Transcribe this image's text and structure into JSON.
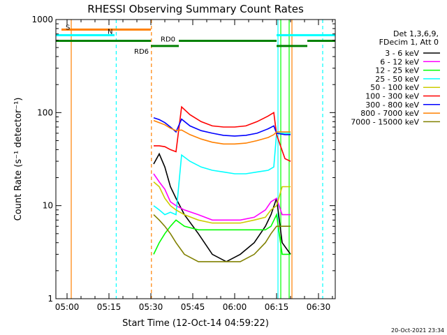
{
  "chart_data": {
    "type": "line",
    "title": "RHESSI Observing Summary Count Rates",
    "xlabel": "Start Time (12-Oct-14 04:59:22)",
    "ylabel": "Count Rate (s⁻¹ detector⁻¹)",
    "yscale": "log",
    "ylim": [
      1,
      1000
    ],
    "xlim_minutes": [
      -4,
      96
    ],
    "xticks": [
      {
        "label": "05:00",
        "t": 0
      },
      {
        "label": "05:15",
        "t": 15
      },
      {
        "label": "05:30",
        "t": 30
      },
      {
        "label": "05:45",
        "t": 45
      },
      {
        "label": "06:00",
        "t": 60
      },
      {
        "label": "06:15",
        "t": 75
      },
      {
        "label": "06:30",
        "t": 90
      }
    ],
    "yticks": [
      {
        "label": "1",
        "v": 1
      },
      {
        "label": "10",
        "v": 10
      },
      {
        "label": "100",
        "v": 100
      },
      {
        "label": "1000",
        "v": 1000
      }
    ],
    "legend_position": "right",
    "legend_header": [
      "Det 1,3,6,9,",
      "FDecim 1, Att 0"
    ],
    "timestamp": "20-Oct-2021 23:34",
    "series": [
      {
        "name": "3 - 6 keV",
        "color": "#000000",
        "points": [
          [
            31,
            28
          ],
          [
            33,
            36
          ],
          [
            35,
            26
          ],
          [
            37,
            16
          ],
          [
            39,
            12
          ],
          [
            42,
            8
          ],
          [
            47,
            5
          ],
          [
            52,
            3
          ],
          [
            57,
            2.5
          ],
          [
            62,
            3
          ],
          [
            67,
            4
          ],
          [
            71,
            6
          ],
          [
            73,
            8
          ],
          [
            75,
            12
          ],
          [
            77,
            4
          ],
          [
            80,
            3
          ]
        ]
      },
      {
        "name": "6 - 12 keV",
        "color": "#ff00ff",
        "points": [
          [
            31,
            22
          ],
          [
            33,
            18
          ],
          [
            35,
            15
          ],
          [
            37,
            11
          ],
          [
            39,
            10
          ],
          [
            42,
            9
          ],
          [
            47,
            8
          ],
          [
            52,
            7
          ],
          [
            57,
            7
          ],
          [
            62,
            7
          ],
          [
            67,
            7.5
          ],
          [
            71,
            9
          ],
          [
            73,
            11
          ],
          [
            75,
            12
          ],
          [
            77,
            8
          ],
          [
            80,
            8
          ]
        ]
      },
      {
        "name": "12 - 25 keV",
        "color": "#00ff00",
        "points": [
          [
            31,
            3
          ],
          [
            33,
            4
          ],
          [
            35,
            5
          ],
          [
            37,
            6
          ],
          [
            39,
            7
          ],
          [
            42,
            6
          ],
          [
            47,
            5.5
          ],
          [
            52,
            5.5
          ],
          [
            57,
            5.5
          ],
          [
            62,
            5.5
          ],
          [
            67,
            5.5
          ],
          [
            71,
            5.5
          ],
          [
            73,
            6
          ],
          [
            75,
            8
          ],
          [
            77,
            3
          ],
          [
            80,
            3
          ]
        ]
      },
      {
        "name": "25 - 50 keV",
        "color": "#00ffff",
        "points": [
          [
            31,
            10
          ],
          [
            33,
            9
          ],
          [
            35,
            8
          ],
          [
            37,
            8.5
          ],
          [
            39,
            8
          ],
          [
            41,
            35
          ],
          [
            44,
            30
          ],
          [
            48,
            26
          ],
          [
            52,
            24
          ],
          [
            56,
            23
          ],
          [
            60,
            22
          ],
          [
            64,
            22
          ],
          [
            68,
            23
          ],
          [
            72,
            24
          ],
          [
            74,
            26
          ],
          [
            75,
            60
          ],
          [
            78,
            60
          ],
          [
            80,
            60
          ]
        ]
      },
      {
        "name": "50 - 100 keV",
        "color": "#cccc00",
        "points": [
          [
            31,
            18
          ],
          [
            33,
            16
          ],
          [
            35,
            12
          ],
          [
            37,
            10
          ],
          [
            39,
            9
          ],
          [
            42,
            8
          ],
          [
            47,
            7
          ],
          [
            52,
            6.5
          ],
          [
            57,
            6.5
          ],
          [
            62,
            6.5
          ],
          [
            67,
            7
          ],
          [
            71,
            7.5
          ],
          [
            73,
            9
          ],
          [
            75,
            10
          ],
          [
            77,
            16
          ],
          [
            80,
            16
          ]
        ]
      },
      {
        "name": "100 - 300 keV",
        "color": "#ff0000",
        "points": [
          [
            31,
            44
          ],
          [
            33,
            44
          ],
          [
            35,
            43
          ],
          [
            37,
            40
          ],
          [
            39,
            38
          ],
          [
            41,
            115
          ],
          [
            44,
            95
          ],
          [
            48,
            80
          ],
          [
            52,
            72
          ],
          [
            56,
            70
          ],
          [
            60,
            70
          ],
          [
            64,
            72
          ],
          [
            68,
            80
          ],
          [
            72,
            92
          ],
          [
            74,
            100
          ],
          [
            75,
            58
          ],
          [
            78,
            32
          ],
          [
            80,
            30
          ]
        ]
      },
      {
        "name": "300 - 800 keV",
        "color": "#0000ff",
        "points": [
          [
            31,
            88
          ],
          [
            33,
            84
          ],
          [
            35,
            78
          ],
          [
            37,
            70
          ],
          [
            39,
            62
          ],
          [
            41,
            85
          ],
          [
            44,
            72
          ],
          [
            48,
            64
          ],
          [
            52,
            60
          ],
          [
            56,
            57
          ],
          [
            60,
            56
          ],
          [
            64,
            57
          ],
          [
            68,
            60
          ],
          [
            72,
            67
          ],
          [
            74,
            72
          ],
          [
            75,
            60
          ],
          [
            78,
            58
          ],
          [
            80,
            58
          ]
        ]
      },
      {
        "name": "800 - 7000 keV",
        "color": "#ff8000",
        "points": [
          [
            31,
            82
          ],
          [
            33,
            78
          ],
          [
            35,
            74
          ],
          [
            37,
            68
          ],
          [
            39,
            64
          ],
          [
            41,
            65
          ],
          [
            44,
            58
          ],
          [
            48,
            52
          ],
          [
            52,
            48
          ],
          [
            56,
            46
          ],
          [
            60,
            46
          ],
          [
            64,
            47
          ],
          [
            68,
            50
          ],
          [
            72,
            54
          ],
          [
            74,
            58
          ],
          [
            75,
            62
          ],
          [
            78,
            62
          ],
          [
            80,
            62
          ]
        ]
      },
      {
        "name": "7000 - 15000 keV",
        "color": "#808000",
        "points": [
          [
            31,
            8
          ],
          [
            33,
            7
          ],
          [
            35,
            6
          ],
          [
            37,
            5
          ],
          [
            39,
            4
          ],
          [
            42,
            3
          ],
          [
            47,
            2.5
          ],
          [
            52,
            2.5
          ],
          [
            57,
            2.5
          ],
          [
            62,
            2.5
          ],
          [
            67,
            3
          ],
          [
            71,
            4
          ],
          [
            73,
            5
          ],
          [
            75,
            6
          ],
          [
            77,
            6
          ],
          [
            80,
            6
          ]
        ]
      }
    ],
    "state_bars": [
      {
        "label": "S",
        "color": "#ff8000",
        "t0": -2,
        "t1": 30,
        "v": 780
      },
      {
        "label": "N",
        "color": "#00ffff",
        "t0": -4,
        "t1": 17,
        "v": 680
      },
      {
        "label": "",
        "color": "#00ffff",
        "t0": 75,
        "t1": 96,
        "v": 680
      },
      {
        "label": "RD0",
        "color": "#008000",
        "t0": 40,
        "t1": 75,
        "v": 590
      },
      {
        "label": "RD6",
        "color": "#008000",
        "t0": 30,
        "t1": 40,
        "v": 520
      },
      {
        "label": "",
        "color": "#008000",
        "t0": -4,
        "t1": 30,
        "v": 590
      },
      {
        "label": "",
        "color": "#008000",
        "t0": 75,
        "t1": 86,
        "v": 520
      },
      {
        "label": "",
        "color": "#008000",
        "t0": 86,
        "t1": 96,
        "v": 590
      }
    ],
    "markers": [
      {
        "t": 1.5,
        "color": "#ff8000",
        "style": "solid"
      },
      {
        "t": 30.2,
        "color": "#ff8000",
        "style": "dashed"
      },
      {
        "t": 17.6,
        "color": "#00ffff",
        "style": "dashed"
      },
      {
        "t": 75.5,
        "color": "#00ffff",
        "style": "solid"
      },
      {
        "t": 91.5,
        "color": "#00ffff",
        "style": "dashed"
      },
      {
        "t": 76.5,
        "color": "#00ff00",
        "style": "solid"
      },
      {
        "t": 79.5,
        "color": "#00ff00",
        "style": "solid"
      },
      {
        "t": 80.5,
        "color": "#ff8000",
        "style": "solid"
      }
    ]
  }
}
